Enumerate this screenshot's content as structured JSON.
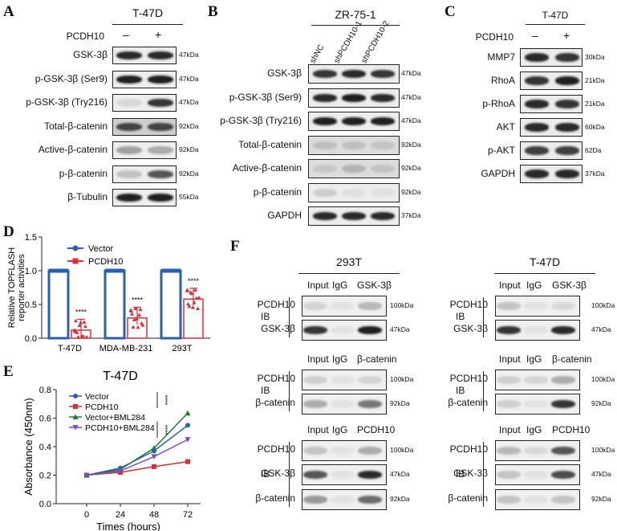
{
  "panels": {
    "A": {
      "letter": "A",
      "title": "T-47D",
      "treatment_label": "PCDH10",
      "treatment_signs": [
        "–",
        "+"
      ],
      "rows": [
        {
          "label": "GSK-3β",
          "kda": "47kDa"
        },
        {
          "label": "p-GSK-3β (Ser9)",
          "kda": "47kDa"
        },
        {
          "label": "p-GSK-3β (Try216)",
          "kda": "47kDa"
        },
        {
          "label": "Total-β-catenin",
          "kda": "92kDa"
        },
        {
          "label": "Active-β-catenin",
          "kda": "92kDa"
        },
        {
          "label": "p-β-catenin",
          "kda": "92kDa"
        },
        {
          "label": "β-Tubulin",
          "kda": "55kDa"
        }
      ]
    },
    "B": {
      "letter": "B",
      "title": "ZR-75-1",
      "lanes": [
        "shNC",
        "shPCDH10-1",
        "shPCDH10-2"
      ],
      "rows": [
        {
          "label": "GSK-3β",
          "kda": "47kDa"
        },
        {
          "label": "p-GSK-3β (Ser9)",
          "kda": "47kDa"
        },
        {
          "label": "p-GSK-3β (Try216)",
          "kda": "47kDa"
        },
        {
          "label": "Total-β-catenin",
          "kda": "92kDa"
        },
        {
          "label": "Active-β-catenin",
          "kda": "92kDa"
        },
        {
          "label": "p-β-catenin",
          "kda": "92kDa"
        },
        {
          "label": "GAPDH",
          "kda": "37kDa"
        }
      ]
    },
    "C": {
      "letter": "C",
      "title": "T-47D",
      "treatment_label": "PCDH10",
      "treatment_signs": [
        "–",
        "+"
      ],
      "rows": [
        {
          "label": "MMP7",
          "kda": "30kDa"
        },
        {
          "label": "RhoA",
          "kda": "21kDa"
        },
        {
          "label": "p-RhoA",
          "kda": "21kDa"
        },
        {
          "label": "AKT",
          "kda": "60kDa"
        },
        {
          "label": "p-AKT",
          "kda": "62Da"
        },
        {
          "label": "GAPDH",
          "kda": "37kDa"
        }
      ]
    },
    "D": {
      "letter": "D"
    },
    "E": {
      "letter": "E"
    },
    "F": {
      "letter": "F",
      "ib": "IB",
      "left_title": "293T",
      "right_title": "T-47D",
      "blocks": [
        {
          "lanes": [
            "Input",
            "IgG",
            "GSK-3β"
          ],
          "rows": [
            {
              "label": "PCDH10",
              "kda": "100kDa"
            },
            {
              "label": "GSK-3β",
              "kda": "47kDa"
            }
          ]
        },
        {
          "lanes": [
            "Input",
            "IgG",
            "β-catenin"
          ],
          "rows": [
            {
              "label": "PCDH10",
              "kda": "100kDa"
            },
            {
              "label": "β-catenin",
              "kda": "92kDa"
            }
          ]
        },
        {
          "lanes": [
            "Input",
            "IgG",
            "PCDH10"
          ],
          "rows": [
            {
              "label": "PCDH10",
              "kda": "100kDa"
            },
            {
              "label": "GSK-3β",
              "kda": "47kDa"
            },
            {
              "label": "β-catenin",
              "kda": "92kDa"
            }
          ]
        }
      ]
    }
  },
  "chart_data": [
    {
      "type": "bar",
      "panel": "D",
      "categories": [
        "T-47D",
        "MDA-MB-231",
        "293T"
      ],
      "series": [
        {
          "name": "Vector",
          "values": [
            1.0,
            1.0,
            1.0
          ],
          "color": "#2d5fb0"
        },
        {
          "name": "PCDH10",
          "values": [
            0.12,
            0.3,
            0.58
          ],
          "color": "#d62f3a"
        }
      ],
      "significance": [
        "****",
        "****",
        "****"
      ],
      "ylabel": "Relative TOPFLASH\nreporter activities",
      "ylim": [
        0,
        1.5
      ],
      "yticks": [
        "0.0",
        "0.5",
        "1.0",
        "1.5"
      ]
    },
    {
      "type": "line",
      "panel": "E",
      "title": "T-47D",
      "x": [
        0,
        24,
        48,
        72
      ],
      "series": [
        {
          "name": "Vector",
          "values": [
            0.2,
            0.25,
            0.37,
            0.55
          ],
          "color": "#2d5fb0",
          "marker": "circle"
        },
        {
          "name": "PCDH10",
          "values": [
            0.2,
            0.22,
            0.26,
            0.295
          ],
          "color": "#d62f3a",
          "marker": "square"
        },
        {
          "name": "Vector+BML284",
          "values": [
            0.2,
            0.24,
            0.39,
            0.635
          ],
          "color": "#1e7a3c",
          "marker": "triangle-up"
        },
        {
          "name": "PCDH10+BML284",
          "values": [
            0.2,
            0.23,
            0.33,
            0.45
          ],
          "color": "#7a4fc0",
          "marker": "triangle-down"
        }
      ],
      "significance": [
        "****",
        "****"
      ],
      "xlabel": "Times (hours)",
      "ylabel": "Absorbance (450nm)",
      "ylim": [
        0,
        0.8
      ],
      "yticks": [
        "0.0",
        "0.2",
        "0.4",
        "0.6",
        "0.8"
      ],
      "xticks": [
        "0",
        "24",
        "48",
        "72"
      ]
    }
  ]
}
